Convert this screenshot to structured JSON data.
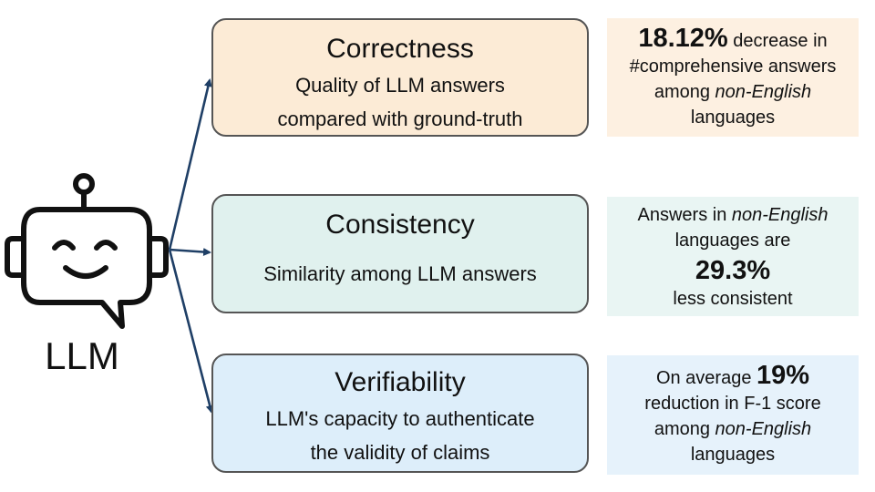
{
  "llm_label": "LLM",
  "colors": {
    "arrow": "#1f3f66",
    "correctness_fill": "#fcebd6",
    "consistency_fill": "#e0f1ee",
    "verifiability_fill": "#ddeefa"
  },
  "icons": [
    "robot-chat-icon"
  ],
  "dimensions": [
    {
      "title": "Correctness",
      "description_line1": "Quality of LLM answers",
      "description_line2": "compared with ground-truth",
      "stat": {
        "value": "18.12%",
        "text_after_value": " decrease in",
        "line2": "#comprehensive answers",
        "line3_prefix": "among ",
        "line3_emphasis": "non-English",
        "line4": "languages"
      }
    },
    {
      "title": "Consistency",
      "description_line1": "Similarity among LLM answers",
      "stat": {
        "line1_prefix": "Answers in ",
        "line1_emphasis": "non-English",
        "line2": "languages are",
        "value": "29.3%",
        "line4": "less consistent"
      }
    },
    {
      "title": "Verifiability",
      "description_line1": "LLM's capacity to authenticate",
      "description_line2": "the validity of claims",
      "stat": {
        "text_before_value": "On average ",
        "value": "19%",
        "line2": "reduction in F-1 score",
        "line3_prefix": "among ",
        "line3_emphasis": "non-English",
        "line4": "languages"
      }
    }
  ]
}
